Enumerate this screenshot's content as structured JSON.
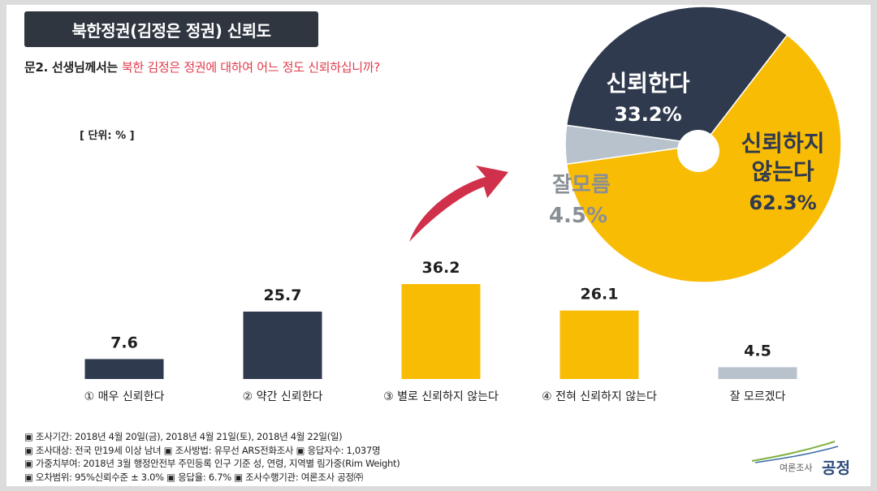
{
  "title": "북한정권(김정은 정권) 신뢰도",
  "question": {
    "prefix": "문2. 선생님께서는 ",
    "highlight": "북한 김정은 정권에 대하여 어느 정도 신뢰하십니까?"
  },
  "unit": "[ 단위: % ]",
  "colors": {
    "navy": "#2f3a4f",
    "yellow": "#f9bc05",
    "gray": "#b8c2cc",
    "arrow": "#d0304a"
  },
  "chart_data": [
    {
      "type": "bar",
      "categories": [
        "① 매우 신뢰한다",
        "② 약간 신뢰한다",
        "③ 별로 신뢰하지 않는다",
        "④ 전혀 신뢰하지 않는다",
        "잘 모르겠다"
      ],
      "values": [
        7.6,
        25.7,
        36.2,
        26.1,
        4.5
      ],
      "value_labels": [
        "7.6",
        "25.7",
        "36.2",
        "26.1",
        "4.5"
      ],
      "bar_colors": [
        "#2f3a4f",
        "#2f3a4f",
        "#f9bc05",
        "#f9bc05",
        "#b8c2cc"
      ],
      "ylim": [
        0,
        36.2
      ]
    },
    {
      "type": "pie",
      "slices": [
        {
          "label": "신뢰한다",
          "value": 33.2,
          "value_label": "33.2%",
          "color": "#2f3a4f",
          "text_color": "#ffffff"
        },
        {
          "label": "신뢰하지 않는다",
          "label_lines": [
            "신뢰하지",
            "않는다"
          ],
          "value": 62.3,
          "value_label": "62.3%",
          "color": "#f9bc05",
          "text_color": "#2f3a4f"
        },
        {
          "label": "잘모름",
          "value": 4.5,
          "value_label": "4.5%",
          "color": "#b8c2cc",
          "text_color": "#8a8f96"
        }
      ],
      "donut_hole": true
    }
  ],
  "footer": {
    "line1": "▣ 조사기간: 2018년 4월 20일(금), 2018년 4월 21일(토), 2018년 4월 22일(일)",
    "line2": "▣ 조사대상: 전국 만19세 이상 남녀 ▣ 조사방법: 유무선 ARS전화조사 ▣ 응답자수: 1,037명",
    "line3": "▣ 가중치부여: 2018년 3월 행정안전부 주민등록 인구 기준 성, 연령, 지역별 림가중(Rim Weight)",
    "line4": "▣ 오차범위: 95%신뢰수준 ± 3.0% ▣ 응답율: 6.7% ▣ 조사수행기관: 여론조사 공정㈜"
  },
  "logo": {
    "text": "여론조사",
    "brand": "공정"
  }
}
